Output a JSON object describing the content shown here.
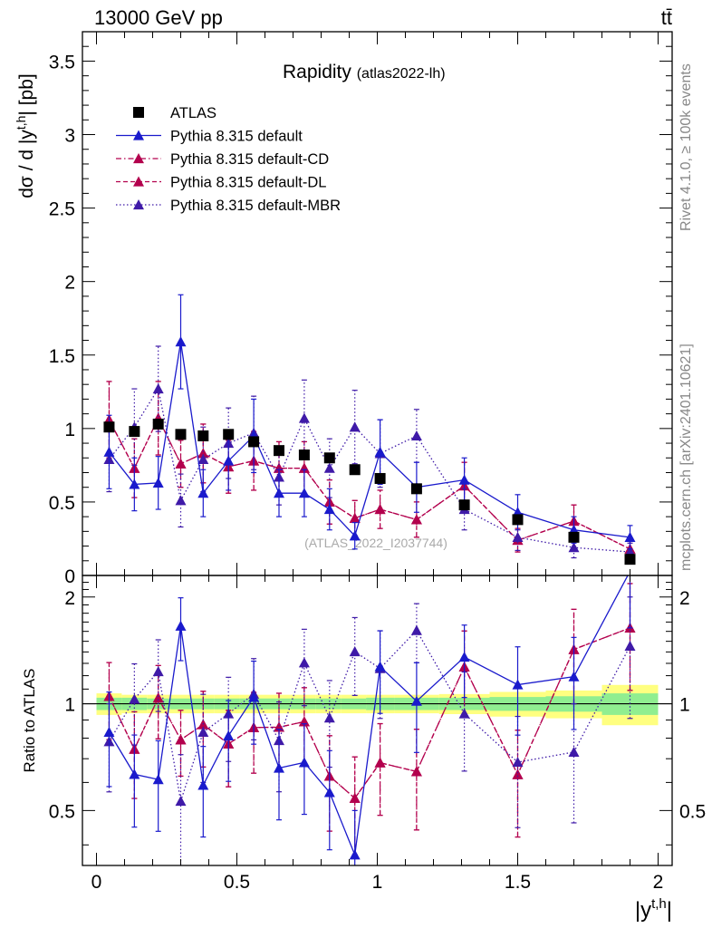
{
  "header": {
    "beam": "13000 GeV pp",
    "process": "tt̄"
  },
  "side_text": {
    "rivet": "Rivet 4.1.0, ≥ 100k events",
    "mcplots": "mcplots.cern.ch [arXiv:2401.10621]"
  },
  "chart_data": {
    "type": "scatter",
    "title": "Rapidity",
    "subtitle": "(atlas2022-lh)",
    "analysis_id": "(ATLAS_2022_I2037744)",
    "xlabel": "|y^{t,h}|",
    "ylabel": "dσ / d |y^{t,h}| [pb]",
    "ratio_ylabel": "Ratio to ATLAS",
    "xlim": [
      -0.05,
      2.05
    ],
    "ylim": [
      0,
      3.7
    ],
    "ratio_ylim": [
      0.35,
      2.3
    ],
    "x_ticks": [
      "0",
      "0.5",
      "1",
      "1.5",
      "2"
    ],
    "y_ticks": [
      "0",
      "0.5",
      "1",
      "1.5",
      "2",
      "2.5",
      "3",
      "3.5"
    ],
    "ratio_y_ticks": [
      "0.5",
      "1",
      "2"
    ],
    "x": [
      0.045,
      0.135,
      0.22,
      0.3,
      0.38,
      0.47,
      0.56,
      0.65,
      0.74,
      0.83,
      0.92,
      1.01,
      1.14,
      1.31,
      1.5,
      1.7,
      1.9
    ],
    "legend": [
      {
        "name": "ATLAS",
        "style": "square"
      },
      {
        "name": "Pythia 8.315 default",
        "style": "solid"
      },
      {
        "name": "Pythia 8.315 default-CD",
        "style": "dashdot"
      },
      {
        "name": "Pythia 8.315 default-DL",
        "style": "dashed"
      },
      {
        "name": "Pythia 8.315 default-MBR",
        "style": "dotted"
      }
    ],
    "series": [
      {
        "name": "ATLAS",
        "color": "#000000",
        "values": [
          1.01,
          0.98,
          1.03,
          0.96,
          0.95,
          0.96,
          0.91,
          0.85,
          0.82,
          0.8,
          0.72,
          0.66,
          0.59,
          0.48,
          0.38,
          0.26,
          0.11
        ]
      },
      {
        "name": "Pythia 8.315 default",
        "color": "#1a1acc",
        "values": [
          0.84,
          0.62,
          0.63,
          1.59,
          0.56,
          0.78,
          0.95,
          0.56,
          0.56,
          0.45,
          0.27,
          0.84,
          0.6,
          0.65,
          0.43,
          0.31,
          0.26
        ],
        "errors": [
          0.25,
          0.18,
          0.18,
          0.32,
          0.16,
          0.2,
          0.25,
          0.16,
          0.16,
          0.14,
          0.09,
          0.22,
          0.17,
          0.15,
          0.12,
          0.09,
          0.08
        ]
      },
      {
        "name": "Pythia 8.315 default-CD",
        "color": "#b3004d",
        "values": [
          1.06,
          0.73,
          1.07,
          0.76,
          0.83,
          0.74,
          0.78,
          0.73,
          0.73,
          0.5,
          0.39,
          0.45,
          0.38,
          0.61,
          0.24,
          0.37,
          0.18
        ],
        "errors": [
          0.26,
          0.2,
          0.25,
          0.16,
          0.2,
          0.18,
          0.2,
          0.18,
          0.18,
          0.15,
          0.12,
          0.13,
          0.12,
          0.16,
          0.08,
          0.11,
          0.06
        ]
      },
      {
        "name": "Pythia 8.315 default-DL",
        "color": "#b3004d",
        "values": [
          1.06,
          0.73,
          1.07,
          0.76,
          0.83,
          0.74,
          0.78,
          0.73,
          0.73,
          0.5,
          0.39,
          0.45,
          0.38,
          0.61,
          0.24,
          0.37,
          0.18
        ],
        "errors": [
          0.26,
          0.2,
          0.25,
          0.16,
          0.2,
          0.18,
          0.2,
          0.18,
          0.18,
          0.15,
          0.12,
          0.13,
          0.12,
          0.16,
          0.08,
          0.11,
          0.06
        ]
      },
      {
        "name": "Pythia 8.315 default-MBR",
        "color": "#3f1aa8",
        "values": [
          0.79,
          1.01,
          1.27,
          0.51,
          0.79,
          0.9,
          0.97,
          0.67,
          1.07,
          0.73,
          1.01,
          0.83,
          0.95,
          0.45,
          0.26,
          0.19,
          0.16
        ],
        "errors": [
          0.22,
          0.26,
          0.29,
          0.18,
          0.22,
          0.24,
          0.25,
          0.19,
          0.26,
          0.2,
          0.25,
          0.23,
          0.18,
          0.14,
          0.09,
          0.07,
          0.06
        ]
      }
    ],
    "ratio_band": {
      "x_edges": [
        0.0,
        0.09,
        0.18,
        0.26,
        0.34,
        0.42,
        0.51,
        0.6,
        0.69,
        0.78,
        0.87,
        0.96,
        1.06,
        1.22,
        1.4,
        1.6,
        1.8,
        2.0
      ],
      "inner": [
        0.04,
        0.04,
        0.035,
        0.035,
        0.035,
        0.035,
        0.035,
        0.035,
        0.035,
        0.035,
        0.035,
        0.04,
        0.04,
        0.04,
        0.045,
        0.05,
        0.07
      ],
      "outer": [
        0.07,
        0.06,
        0.06,
        0.06,
        0.06,
        0.06,
        0.06,
        0.06,
        0.06,
        0.06,
        0.06,
        0.06,
        0.06,
        0.065,
        0.08,
        0.09,
        0.13
      ]
    }
  }
}
